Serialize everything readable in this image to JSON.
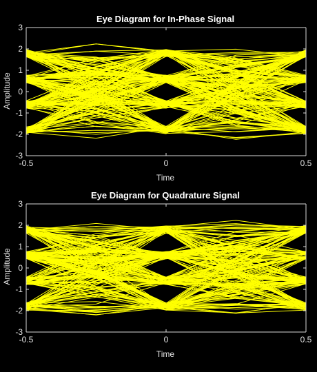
{
  "figure": {
    "background": "#000000",
    "trace_color": "#ffff00",
    "axis_color": "#d9d9d9"
  },
  "chart_data": [
    {
      "type": "line",
      "title": "Eye Diagram for In-Phase Signal",
      "xlabel": "Time",
      "ylabel": "Amplitude",
      "xlim": [
        -0.5,
        0.5
      ],
      "ylim": [
        -3,
        3
      ],
      "xticks": [
        -0.5,
        0,
        0.5
      ],
      "yticks": [
        -3,
        -2,
        -1,
        0,
        1,
        2,
        3
      ],
      "xtick_labels": [
        "-0.5",
        "0",
        "0.5"
      ],
      "ytick_labels": [
        "-3",
        "-2",
        "-1",
        "0",
        "1",
        "2",
        "3"
      ],
      "grid": false,
      "levels": [
        -1.8,
        -0.6,
        0.6,
        1.8
      ],
      "trace_count": 200,
      "eye_openings": [
        {
          "x": -0.5,
          "y_centers": [
            -1.05,
            0.1,
            1.25
          ],
          "half_height": 0.2
        },
        {
          "x": 0,
          "y_centers": [
            -1.05,
            0.1,
            1.25
          ],
          "half_height": 0.22
        },
        {
          "x": 0.5,
          "y_centers": [
            -1.05,
            0.1,
            1.25
          ],
          "half_height": 0.2
        }
      ],
      "envelope": {
        "max": 2.35,
        "min": -2.35
      }
    },
    {
      "type": "line",
      "title": "Eye Diagram for Quadrature Signal",
      "xlabel": "Time",
      "ylabel": "Amplitude",
      "xlim": [
        -0.5,
        0.5
      ],
      "ylim": [
        -3,
        3
      ],
      "xticks": [
        -0.5,
        0,
        0.5
      ],
      "yticks": [
        -3,
        -2,
        -1,
        0,
        1,
        2,
        3
      ],
      "xtick_labels": [
        "-0.5",
        "0",
        "0.5"
      ],
      "ytick_labels": [
        "-3",
        "-2",
        "-1",
        "0",
        "1",
        "2",
        "3"
      ],
      "grid": false,
      "levels": [
        -1.8,
        -0.6,
        0.6,
        1.8
      ],
      "trace_count": 200,
      "eye_openings": [
        {
          "x": -0.5,
          "y_centers": [
            -1.1,
            0.0,
            1.2
          ],
          "half_height": 0.2
        },
        {
          "x": 0,
          "y_centers": [
            -1.1,
            0.0,
            1.2
          ],
          "half_height": 0.22
        },
        {
          "x": 0.5,
          "y_centers": [
            -1.1,
            0.0,
            1.2
          ],
          "half_height": 0.2
        }
      ],
      "envelope": {
        "max": 2.45,
        "min": -2.35
      }
    }
  ]
}
